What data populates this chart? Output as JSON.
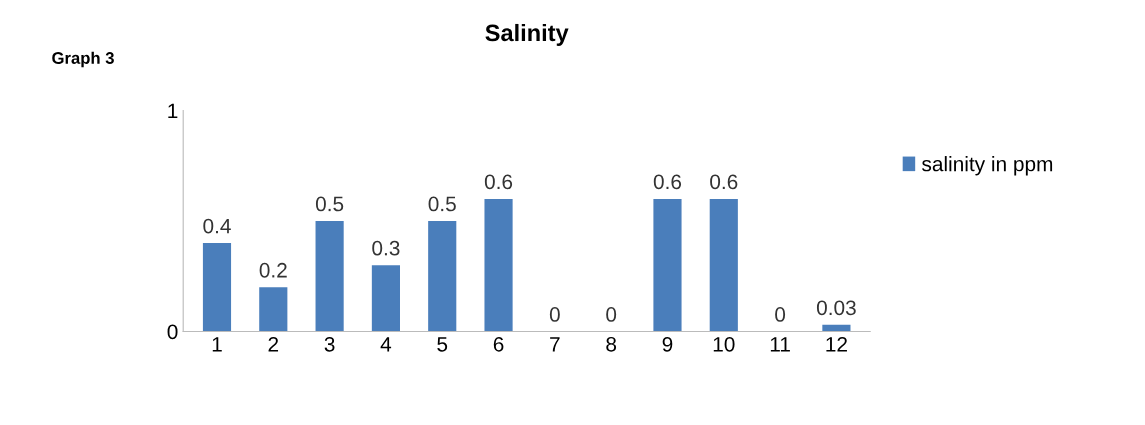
{
  "chart_data": {
    "type": "bar",
    "title": "Salinity",
    "annotations": [
      "Graph 3"
    ],
    "categories": [
      "1",
      "2",
      "3",
      "4",
      "5",
      "6",
      "7",
      "8",
      "9",
      "10",
      "11",
      "12"
    ],
    "series": [
      {
        "name": "salinity in ppm",
        "color": "#4a7ebb",
        "values": [
          0.4,
          0.2,
          0.5,
          0.3,
          0.5,
          0.6,
          0,
          0,
          0.6,
          0.6,
          0,
          0.03
        ]
      }
    ],
    "ylim": [
      0,
      1
    ],
    "yticks": [
      0,
      1
    ],
    "data_labels": true,
    "legend": "right",
    "grid": false
  }
}
